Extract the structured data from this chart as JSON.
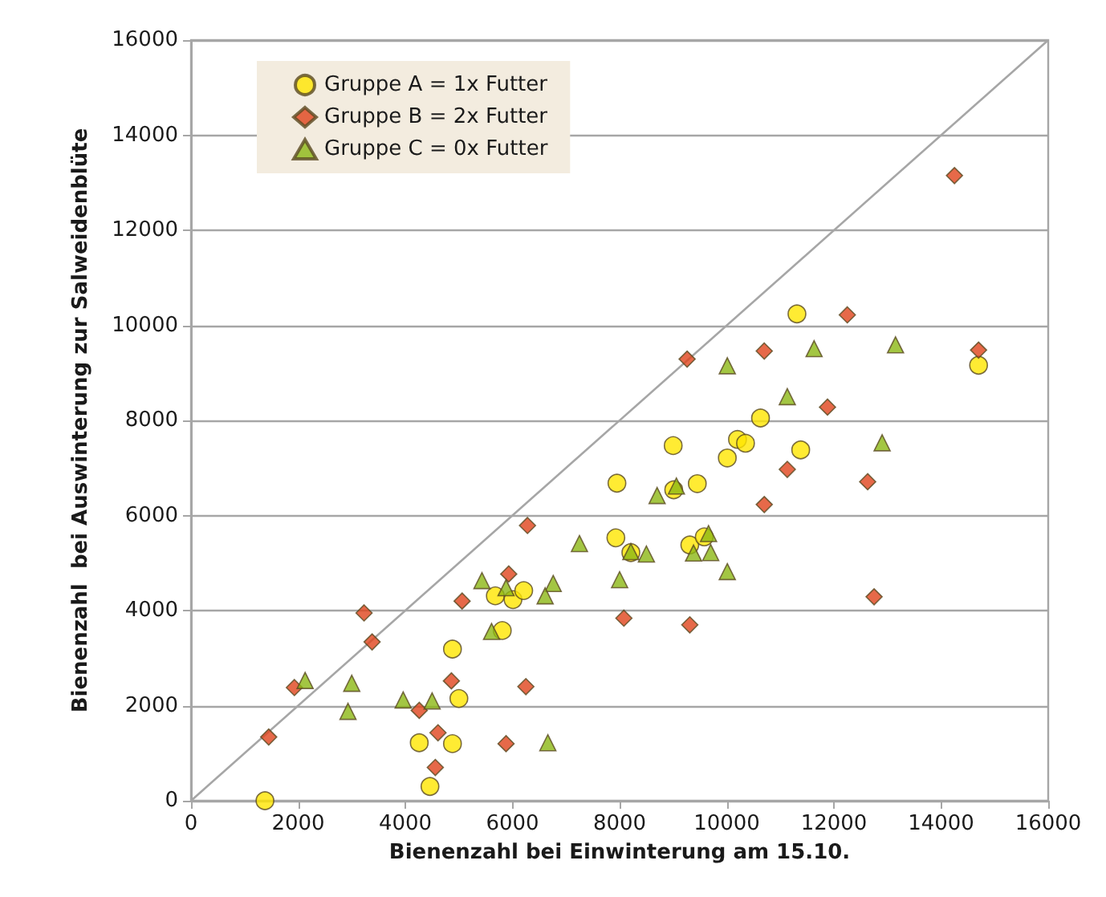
{
  "chart_data": {
    "type": "scatter",
    "xlabel": "Bienenzahl bei Einwinterung am 15.10.",
    "ylabel": "Bienenzahl  bei Auswinterung zur Salweidenblüte",
    "xlim": [
      0,
      16000
    ],
    "ylim": [
      0,
      16000
    ],
    "xticks": [
      0,
      2000,
      4000,
      6000,
      8000,
      10000,
      12000,
      14000,
      16000
    ],
    "yticks": [
      0,
      2000,
      4000,
      6000,
      8000,
      10000,
      12000,
      14000,
      16000
    ],
    "grid": "y",
    "legend": "top left",
    "series": [
      {
        "name": "Gruppe A = 1x Futter",
        "color": "#ffe600",
        "marker": "circle",
        "x": [
          1380,
          4460,
          4260,
          4880,
          5000,
          4880,
          5810,
          5680,
          6010,
          6210,
          7950,
          9010,
          9450,
          7930,
          8210,
          9310,
          9580,
          11310,
          10630,
          9000,
          10200,
          10350,
          10010,
          11380,
          14700
        ],
        "values": [
          0,
          300,
          1220,
          1200,
          2150,
          3190,
          3580,
          4310,
          4230,
          4420,
          6680,
          6540,
          6670,
          5530,
          5220,
          5380,
          5550,
          10240,
          8050,
          7470,
          7600,
          7520,
          7210,
          7380,
          9160
        ]
      },
      {
        "name": "Gruppe B = 2x Futter",
        "color": "#e0441c",
        "marker": "diamond",
        "x": [
          6280,
          5930,
          5060,
          3230,
          3380,
          1930,
          1450,
          4860,
          6250,
          4260,
          4610,
          4560,
          5880,
          10700,
          8080,
          9310,
          12250,
          9260,
          10700,
          11880,
          11130,
          14700,
          12630,
          12750,
          14250
        ],
        "values": [
          5790,
          4770,
          4200,
          3950,
          3340,
          2380,
          1340,
          2520,
          2400,
          1900,
          1430,
          700,
          1200,
          6230,
          3840,
          3700,
          10220,
          9290,
          9460,
          8280,
          6970,
          9480,
          6710,
          4290,
          13150
        ]
      },
      {
        "name": "Gruppe C = 0x Futter",
        "color": "#8cb814",
        "marker": "triangle",
        "x": [
          7250,
          5430,
          5880,
          6760,
          6610,
          5610,
          2130,
          3000,
          2930,
          3960,
          4500,
          6660,
          8700,
          9060,
          8210,
          8500,
          9660,
          9380,
          9700,
          10010,
          8000,
          10010,
          11630,
          11130,
          13150,
          12900
        ],
        "values": [
          5410,
          4630,
          4480,
          4570,
          4310,
          3560,
          2530,
          2470,
          1880,
          2120,
          2100,
          1220,
          6420,
          6620,
          5240,
          5190,
          5620,
          5210,
          5220,
          4820,
          4650,
          9150,
          9510,
          8500,
          9590,
          7530
        ]
      },
      {
        "type": "line",
        "color": "#a6a6a6",
        "marker": "none",
        "x": [
          0,
          16000
        ],
        "values": [
          0,
          16000
        ]
      }
    ]
  }
}
